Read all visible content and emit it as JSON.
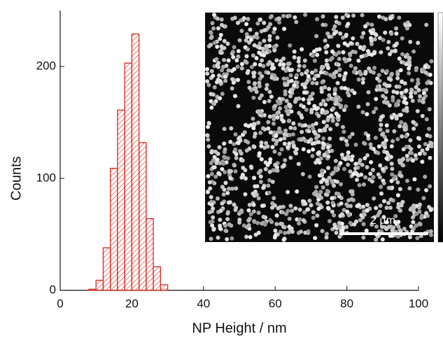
{
  "chart_data": {
    "type": "histogram",
    "x_label": "NP Height / nm",
    "y_label": "Counts",
    "bins": [
      8,
      10,
      12,
      14,
      16,
      18,
      20,
      22,
      24,
      26,
      28,
      30
    ],
    "values": [
      1,
      9,
      38,
      109,
      161,
      203,
      229,
      132,
      64,
      21,
      5
    ],
    "color": "#d42a1e",
    "hatch": true,
    "xlim": [
      0,
      100
    ],
    "xticks": [
      0,
      20,
      40,
      60,
      80,
      100
    ],
    "ylim": [
      0,
      250
    ],
    "yticks": [
      0,
      100,
      200
    ],
    "annotations": [
      "2 µm"
    ]
  }
}
